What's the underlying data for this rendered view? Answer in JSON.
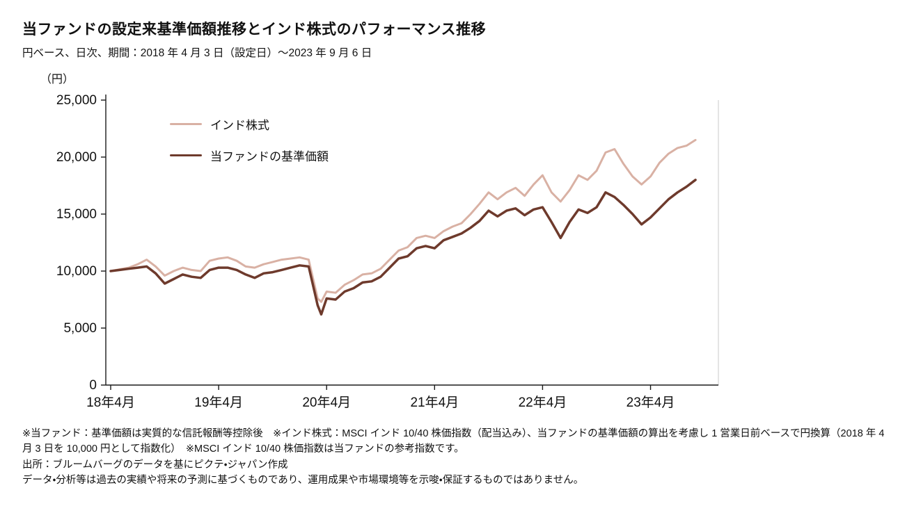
{
  "header": {
    "title": "当ファンドの設定来基準価額推移とインド株式のパフォーマンス推移",
    "subtitle": "円ベース、日次、期間：2018 年 4 月 3 日（設定日）～2023 年 9 月 6 日"
  },
  "chart_data": {
    "type": "line",
    "title": "当ファンドの設定来基準価額推移とインド株式のパフォーマンス推移",
    "unit_label": "（円）",
    "xlabel": "",
    "ylabel": "円",
    "ylim": [
      0,
      25000
    ],
    "xlim": [
      0,
      67
    ],
    "grid": false,
    "legend_position": "top-left-inside",
    "axis_color": "#1a1a1a",
    "frame_color": "#c8c8c8",
    "y_ticks": [
      {
        "value": 0,
        "label": "0"
      },
      {
        "value": 5000,
        "label": "5,000"
      },
      {
        "value": 10000,
        "label": "10,000"
      },
      {
        "value": 15000,
        "label": "15,000"
      },
      {
        "value": 20000,
        "label": "20,000"
      },
      {
        "value": 25000,
        "label": "25,000"
      }
    ],
    "x_ticks": [
      {
        "month": 0,
        "label": "18年4月"
      },
      {
        "month": 12,
        "label": "19年4月"
      },
      {
        "month": 24,
        "label": "20年4月"
      },
      {
        "month": 36,
        "label": "21年4月"
      },
      {
        "month": 48,
        "label": "22年4月"
      },
      {
        "month": 60,
        "label": "23年4月"
      }
    ],
    "x_unit": "months since 2018-04",
    "series": [
      {
        "name": "インド株式",
        "color": "#d9b1a4",
        "width": 3,
        "points": [
          [
            0,
            10000
          ],
          [
            1,
            10150
          ],
          [
            2,
            10300
          ],
          [
            3,
            10600
          ],
          [
            4,
            11000
          ],
          [
            5,
            10400
          ],
          [
            6,
            9600
          ],
          [
            7,
            10000
          ],
          [
            8,
            10300
          ],
          [
            9,
            10100
          ],
          [
            10,
            10000
          ],
          [
            11,
            10900
          ],
          [
            12,
            11100
          ],
          [
            13,
            11200
          ],
          [
            14,
            10900
          ],
          [
            15,
            10400
          ],
          [
            16,
            10300
          ],
          [
            17,
            10600
          ],
          [
            18,
            10800
          ],
          [
            19,
            11000
          ],
          [
            20,
            11100
          ],
          [
            21,
            11200
          ],
          [
            22,
            11000
          ],
          [
            23,
            7600
          ],
          [
            23.4,
            7300
          ],
          [
            24,
            8200
          ],
          [
            25,
            8100
          ],
          [
            26,
            8800
          ],
          [
            27,
            9200
          ],
          [
            28,
            9700
          ],
          [
            29,
            9800
          ],
          [
            30,
            10200
          ],
          [
            31,
            11000
          ],
          [
            32,
            11800
          ],
          [
            33,
            12100
          ],
          [
            34,
            12900
          ],
          [
            35,
            13100
          ],
          [
            36,
            12900
          ],
          [
            37,
            13500
          ],
          [
            38,
            13900
          ],
          [
            39,
            14200
          ],
          [
            40,
            15000
          ],
          [
            41,
            15900
          ],
          [
            42,
            16900
          ],
          [
            43,
            16300
          ],
          [
            44,
            16900
          ],
          [
            45,
            17300
          ],
          [
            46,
            16600
          ],
          [
            47,
            17600
          ],
          [
            48,
            18400
          ],
          [
            49,
            16900
          ],
          [
            50,
            16100
          ],
          [
            51,
            17100
          ],
          [
            52,
            18400
          ],
          [
            53,
            18000
          ],
          [
            54,
            18800
          ],
          [
            55,
            20400
          ],
          [
            56,
            20700
          ],
          [
            57,
            19400
          ],
          [
            58,
            18300
          ],
          [
            59,
            17600
          ],
          [
            60,
            18300
          ],
          [
            61,
            19500
          ],
          [
            62,
            20300
          ],
          [
            63,
            20800
          ],
          [
            64,
            21000
          ],
          [
            65,
            21500
          ]
        ]
      },
      {
        "name": "当ファンドの基準価額",
        "color": "#6e3a2c",
        "width": 3.5,
        "points": [
          [
            0,
            10000
          ],
          [
            1,
            10100
          ],
          [
            2,
            10200
          ],
          [
            3,
            10300
          ],
          [
            4,
            10400
          ],
          [
            5,
            9800
          ],
          [
            6,
            8900
          ],
          [
            7,
            9300
          ],
          [
            8,
            9700
          ],
          [
            9,
            9500
          ],
          [
            10,
            9400
          ],
          [
            11,
            10100
          ],
          [
            12,
            10300
          ],
          [
            13,
            10300
          ],
          [
            14,
            10100
          ],
          [
            15,
            9700
          ],
          [
            16,
            9400
          ],
          [
            17,
            9800
          ],
          [
            18,
            9900
          ],
          [
            19,
            10100
          ],
          [
            20,
            10300
          ],
          [
            21,
            10500
          ],
          [
            22,
            10400
          ],
          [
            23,
            7000
          ],
          [
            23.4,
            6200
          ],
          [
            24,
            7600
          ],
          [
            25,
            7500
          ],
          [
            26,
            8200
          ],
          [
            27,
            8500
          ],
          [
            28,
            9000
          ],
          [
            29,
            9100
          ],
          [
            30,
            9500
          ],
          [
            31,
            10300
          ],
          [
            32,
            11100
          ],
          [
            33,
            11300
          ],
          [
            34,
            12000
          ],
          [
            35,
            12200
          ],
          [
            36,
            12000
          ],
          [
            37,
            12700
          ],
          [
            38,
            13000
          ],
          [
            39,
            13300
          ],
          [
            40,
            13800
          ],
          [
            41,
            14400
          ],
          [
            42,
            15300
          ],
          [
            43,
            14800
          ],
          [
            44,
            15300
          ],
          [
            45,
            15500
          ],
          [
            46,
            14900
          ],
          [
            47,
            15400
          ],
          [
            48,
            15600
          ],
          [
            49,
            14300
          ],
          [
            50,
            12900
          ],
          [
            51,
            14300
          ],
          [
            52,
            15400
          ],
          [
            53,
            15100
          ],
          [
            54,
            15600
          ],
          [
            55,
            16900
          ],
          [
            56,
            16500
          ],
          [
            57,
            15800
          ],
          [
            58,
            15000
          ],
          [
            59,
            14100
          ],
          [
            60,
            14700
          ],
          [
            61,
            15500
          ],
          [
            62,
            16300
          ],
          [
            63,
            16900
          ],
          [
            64,
            17400
          ],
          [
            65,
            18000
          ]
        ]
      }
    ]
  },
  "footnotes": {
    "disclaimer": "※当ファンド：基準価額は実質的な信託報酬等控除後　※インド株式：MSCI インド 10/40 株価指数（配当込み）、当ファンドの基準価額の算出を考慮し 1 営業日前ベースで円換算（2018 年 4 月 3 日を 10,000 円として指数化）　※MSCI インド 10/40 株価指数は当ファンドの参考指数です。",
    "source": "出所：ブルームバーグのデータを基にピクテ・ジャパン作成",
    "notice": "データ・分析等は過去の実績や将来の予測に基づくものであり、運用成果や市場環境等を示唆・保証するものではありません。"
  }
}
